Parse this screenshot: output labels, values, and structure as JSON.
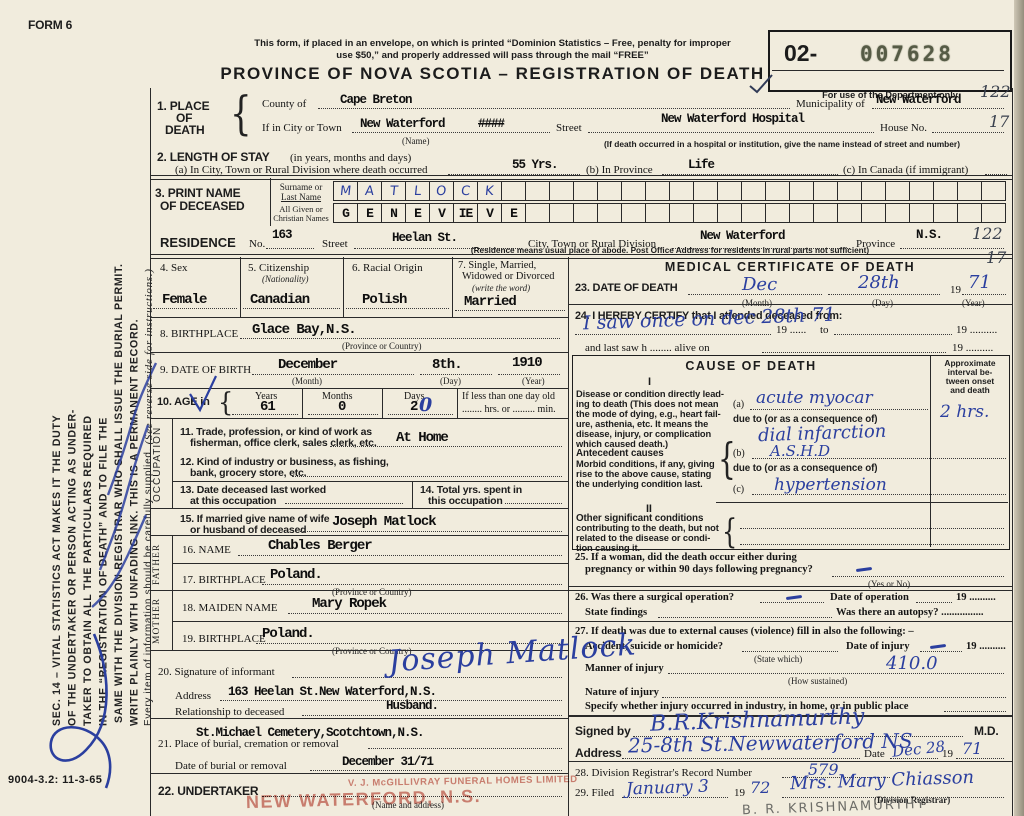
{
  "colors": {
    "ink_blue": "#2b3f9f",
    "stamp_red": "#b93e30",
    "paper": "#f1ecdd"
  },
  "margin": {
    "form_no": "FORM 6",
    "sec14": [
      "SEC. 14 – VITAL STATISTICS ACT MAKES IT THE DUTY",
      "OF THE UNDERTAKER OR PERSON ACTING AS UNDER-",
      "TAKER TO OBTAIN ALL THE PARTICULARS REQUIRED",
      "IN THE “REGISTRATION OF DEATH” AND TO FILE THE",
      "SAME WITH THE DIVISION REGISTRAR WHO SHALL ISSUE THE BURIAL PERMIT.",
      "WRITE PLAINLY WITH UNFADING INK. THIS IS A PERMANENT RECORD."
    ],
    "note_a": "Every item of information should be carefully supplied.",
    "note_b": "(See reverse side for instructions.)",
    "print_code": "9004-3.2: 11-3-65"
  },
  "header": {
    "notice1": "This form, if placed in an envelope, on which is printed “Dominion Statistics – Free, penalty for improper",
    "notice2": "use $50,” and properly addressed will pass through the mail “FREE”",
    "title": "PROVINCE OF NOVA SCOTIA – REGISTRATION OF DEATH",
    "serial_prefix": "02-",
    "serial_number": "007628",
    "dept_note": "For use of the Department only",
    "hw_top1": "122",
    "hw_top2": "17"
  },
  "s1": {
    "label1": "1. PLACE",
    "label2": "OF",
    "label3": "DEATH",
    "county_label": "County of",
    "county": "Cape Breton",
    "municipality_label": "Municipality of",
    "municipality": "New Waterford",
    "city_label": "If in City or Town",
    "city": "New Waterford",
    "city_struck": "####",
    "name_note": "(Name)",
    "street_label": "Street",
    "street": "New Waterford Hospital",
    "house_label": "House No.",
    "hospital_note": "(If death occurred in a hospital or institution, give the name instead of street and number)"
  },
  "s2": {
    "label": "2. LENGTH OF STAY",
    "label_note": "(in years, months and days)",
    "a_label": "(a) In City, Town or Rural Division where death occurred",
    "a": "55 Yrs.",
    "b_label": "(b) In Province",
    "b": "Life",
    "c_label": "(c) In Canada (if immigrant)"
  },
  "s3": {
    "label1": "3. PRINT NAME",
    "label2": "OF DECEASED",
    "surname_label1": "Surname or",
    "surname_label2": "Last Name",
    "given_label1": "All Given or",
    "given_label2": "Christian Names",
    "surname_letters": [
      "M",
      "A",
      "T",
      "L",
      "O",
      "C",
      "K"
    ],
    "given_letters": [
      "G",
      "E",
      "N",
      "E",
      "V",
      "IE",
      "V",
      "E"
    ],
    "residence_label": "RESIDENCE",
    "no_label": "No.",
    "house_no": "163",
    "street_label": "Street",
    "street": "Heelan St.",
    "city_label": "City, Town or Rural Division",
    "city": "New Waterford",
    "province_label": "Province",
    "province": "N.S.",
    "hw1": "122",
    "hw2": "17",
    "note": "(Residence means usual place of abode. Post Office Address for residents in rural parts not sufficient)"
  },
  "s4": {
    "label": "4. Sex",
    "value": "Female"
  },
  "s5": {
    "label": "5. Citizenship",
    "label_note": "(Nationality)",
    "value": "Canadian"
  },
  "s6": {
    "label": "6. Racial Origin",
    "value": "Polish"
  },
  "s7": {
    "label1": "7. Single, Married,",
    "label2": "Widowed or Divorced",
    "label3": "(write the word)",
    "value": "Married"
  },
  "s8": {
    "label": "8. BIRTHPLACE",
    "value": "Glace Bay,N.S.",
    "note": "(Province or Country)"
  },
  "s9": {
    "label": "9. DATE OF BIRTH",
    "month": "December",
    "month_note": "(Month)",
    "day": "8th.",
    "day_note": "(Day)",
    "year": "1910",
    "year_note": "(Year)"
  },
  "s10": {
    "label": "10. AGE in",
    "years_label": "Years",
    "years": "61",
    "months_label": "Months",
    "months": "0",
    "days_label": "Days",
    "days": "2",
    "days_hw": "0",
    "less_label": "If less than one day old",
    "less_line": "........ hrs. or ......... min."
  },
  "occ": {
    "side": "OCCUPATION",
    "s11a": "11. Trade, profession, or kind of work as",
    "s11b": "fisherman, office clerk, sales clerk, etc.",
    "s11_value": "At Home",
    "s12a": "12. Kind of industry or business, as fishing,",
    "s12b": "bank, grocery store, etc.",
    "s13a": "13. Date deceased last worked",
    "s13b": "at this occupation",
    "s14a": "14. Total yrs. spent in",
    "s14b": "this occupation"
  },
  "s15": {
    "label1": "15. If married give name of wife",
    "label2": "or husband of deceased",
    "value": "Joseph Matlock"
  },
  "father": {
    "side": "FATHER",
    "name_label": "16. NAME",
    "name": "Chables  Berger",
    "bp_label": "17. BIRTHPLACE",
    "bp": "Poland.",
    "bp_note": "(Province or Country)"
  },
  "mother": {
    "side": "MOTHER",
    "maiden_label": "18. MAIDEN NAME",
    "maiden": "Mary Ropek",
    "bp_label": "19. BIRTHPLACE",
    "bp": "Poland.",
    "bp_note": "(Province or Country)"
  },
  "s20": {
    "label": "20. Signature of informant",
    "signature": "Joseph Matlock",
    "address_label": "Address",
    "address": "163 Heelan St.New Waterford,N.S.",
    "rel_label": "Relationship to deceased",
    "rel": "Husband."
  },
  "s21": {
    "label": "21. Place of burial, cremation or removal",
    "place": "St.Michael Cemetery,Scotchtown,N.S.",
    "date_label": "Date of burial or removal",
    "date": "December 31/71"
  },
  "s22": {
    "label": "22. UNDERTAKER",
    "note": "(Name and address)",
    "stamp1": "V. J. McGILLIVRAY FUNERAL HOMES LIMITED",
    "stamp2": "NEW WATERFORD, N.S."
  },
  "med": {
    "title": "MEDICAL CERTIFICATE OF DEATH",
    "s23": {
      "label": "23. DATE OF DEATH",
      "month": "Dec",
      "month_note": "(Month)",
      "day": "28th",
      "day_note": "(Day)",
      "y19": "19",
      "year": "71",
      "year_note": "(Year)"
    },
    "s24": {
      "label": "24. I HEREBY CERTIFY that I attended deceased from:",
      "hw": "I saw once on dec 28th 71",
      "y19a": "19 ......",
      "to": "to",
      "y19b": "19 ..........",
      "lastsaw": "and last saw h ........    alive on",
      "y19c": "19 .........."
    },
    "cause": {
      "title": "CAUSE OF DEATH",
      "interval1": "Approximate",
      "interval2": "interval be-",
      "interval3": "tween onset",
      "interval4": "and death",
      "roman1": "I",
      "disease_lines": [
        "Disease or condition directly lead-",
        "ing to death (This does not mean",
        "the mode of dying, e.g., heart fail-",
        "ure, asthenia, etc. It means the",
        "disease, injury, or complication",
        "which caused death.)"
      ],
      "a_label": "(a)",
      "a_hw": "acute myocar",
      "due1": "due to (or as a consequence of)",
      "a_hw2": "dial infarction",
      "interval_value": "2 hrs.",
      "ante_bold": "Antecedent causes",
      "ante_lines": [
        "Morbid conditions, if any, giving",
        "rise to the above cause, stating",
        "the underlying condition last."
      ],
      "b_label": "(b)",
      "b_hw": "A.S.H.D",
      "due2": "due to (or as a consequence of)",
      "c_label": "(c)",
      "c_hw": "hypertension",
      "roman2": "II",
      "other_bold": "Other significant conditions",
      "other_lines": [
        "contributing to the death, but not",
        "related to the disease or condi-",
        "tion causing it."
      ]
    },
    "s25": {
      "line1": "25. If a woman, did the death occur either during",
      "line2": "pregnancy or within 90 days following pregnancy?",
      "note": "(Yes or No)"
    },
    "s26": {
      "line1a": "26. Was there a surgical operation?",
      "line1b": "Date of operation",
      "y19": "19 ..........",
      "line2a": "State findings",
      "line2b": "Was there an autopsy? ................"
    },
    "s27": {
      "line1": "27. If death was due to external causes (violence) fill in also the following: –",
      "line2a": "Accident, suicide or homicide?",
      "state_which": "(State which)",
      "line2b": "Date of injury",
      "y19": "19 ..........",
      "line3": "Manner of injury",
      "hw_code": "410.0",
      "how": "(How sustained)",
      "line4": "Nature of injury",
      "line5": "Specify whether injury occurred in industry, in home, or in public place"
    },
    "signed": {
      "label": "Signed by",
      "hw": "B.R.Krishnamurthy",
      "md": "M.D.",
      "addr_label": "Address",
      "addr_hw": "25-8th St.Newwaterford NS",
      "date_label": "Date",
      "date_hw": "Dec 28",
      "y19": "19",
      "year_hw": "71"
    },
    "s28": {
      "label": "28. Division Registrar's Record Number",
      "value": "579"
    },
    "s29": {
      "label": "29. Filed",
      "date_hw": "January 3",
      "y19": "19",
      "year_hw": "72",
      "registrar_hw": "Mrs. Mary Chiasson",
      "note": "(Division Registrar)"
    },
    "pencil": "B. R. KRISHNAMURTHY"
  }
}
